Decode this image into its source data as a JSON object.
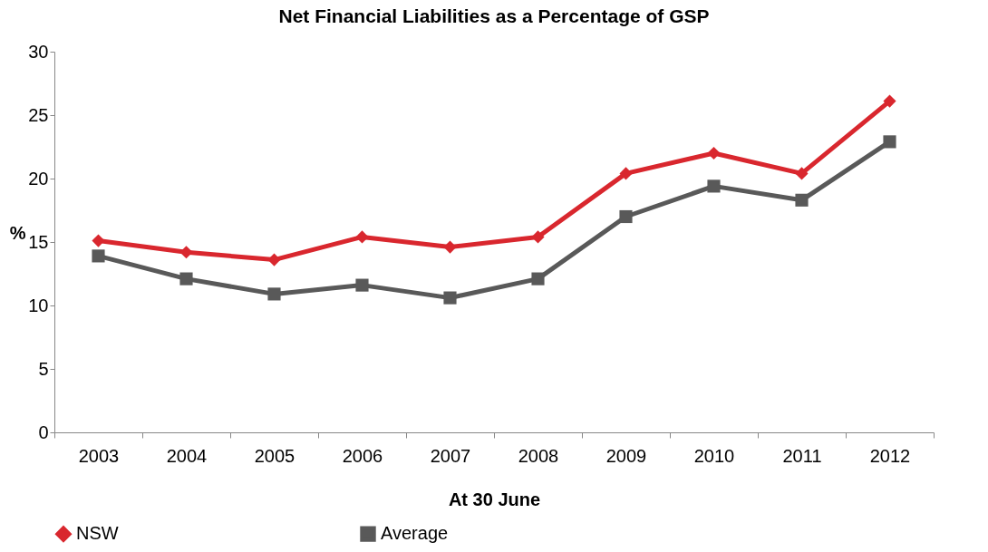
{
  "chart_data": {
    "type": "line",
    "title": "Net Financial Liabilities as a Percentage of GSP",
    "xlabel": "At 30 June",
    "ylabel": "%",
    "categories": [
      "2003",
      "2004",
      "2005",
      "2006",
      "2007",
      "2008",
      "2009",
      "2010",
      "2011",
      "2012"
    ],
    "series": [
      {
        "name": "NSW",
        "color": "#d9272e",
        "marker": "diamond",
        "values": [
          15.1,
          14.2,
          13.6,
          15.4,
          14.6,
          15.4,
          20.4,
          22.0,
          20.4,
          26.1
        ]
      },
      {
        "name": "Average",
        "color": "#595959",
        "marker": "square",
        "values": [
          13.9,
          12.1,
          10.9,
          11.6,
          10.6,
          12.1,
          17.0,
          19.4,
          18.3,
          22.9
        ]
      }
    ],
    "ylim": [
      0,
      30
    ],
    "yticks": [
      0,
      5,
      10,
      15,
      20,
      25,
      30
    ],
    "grid": false,
    "legend": "bottom",
    "line_style": "solid"
  }
}
